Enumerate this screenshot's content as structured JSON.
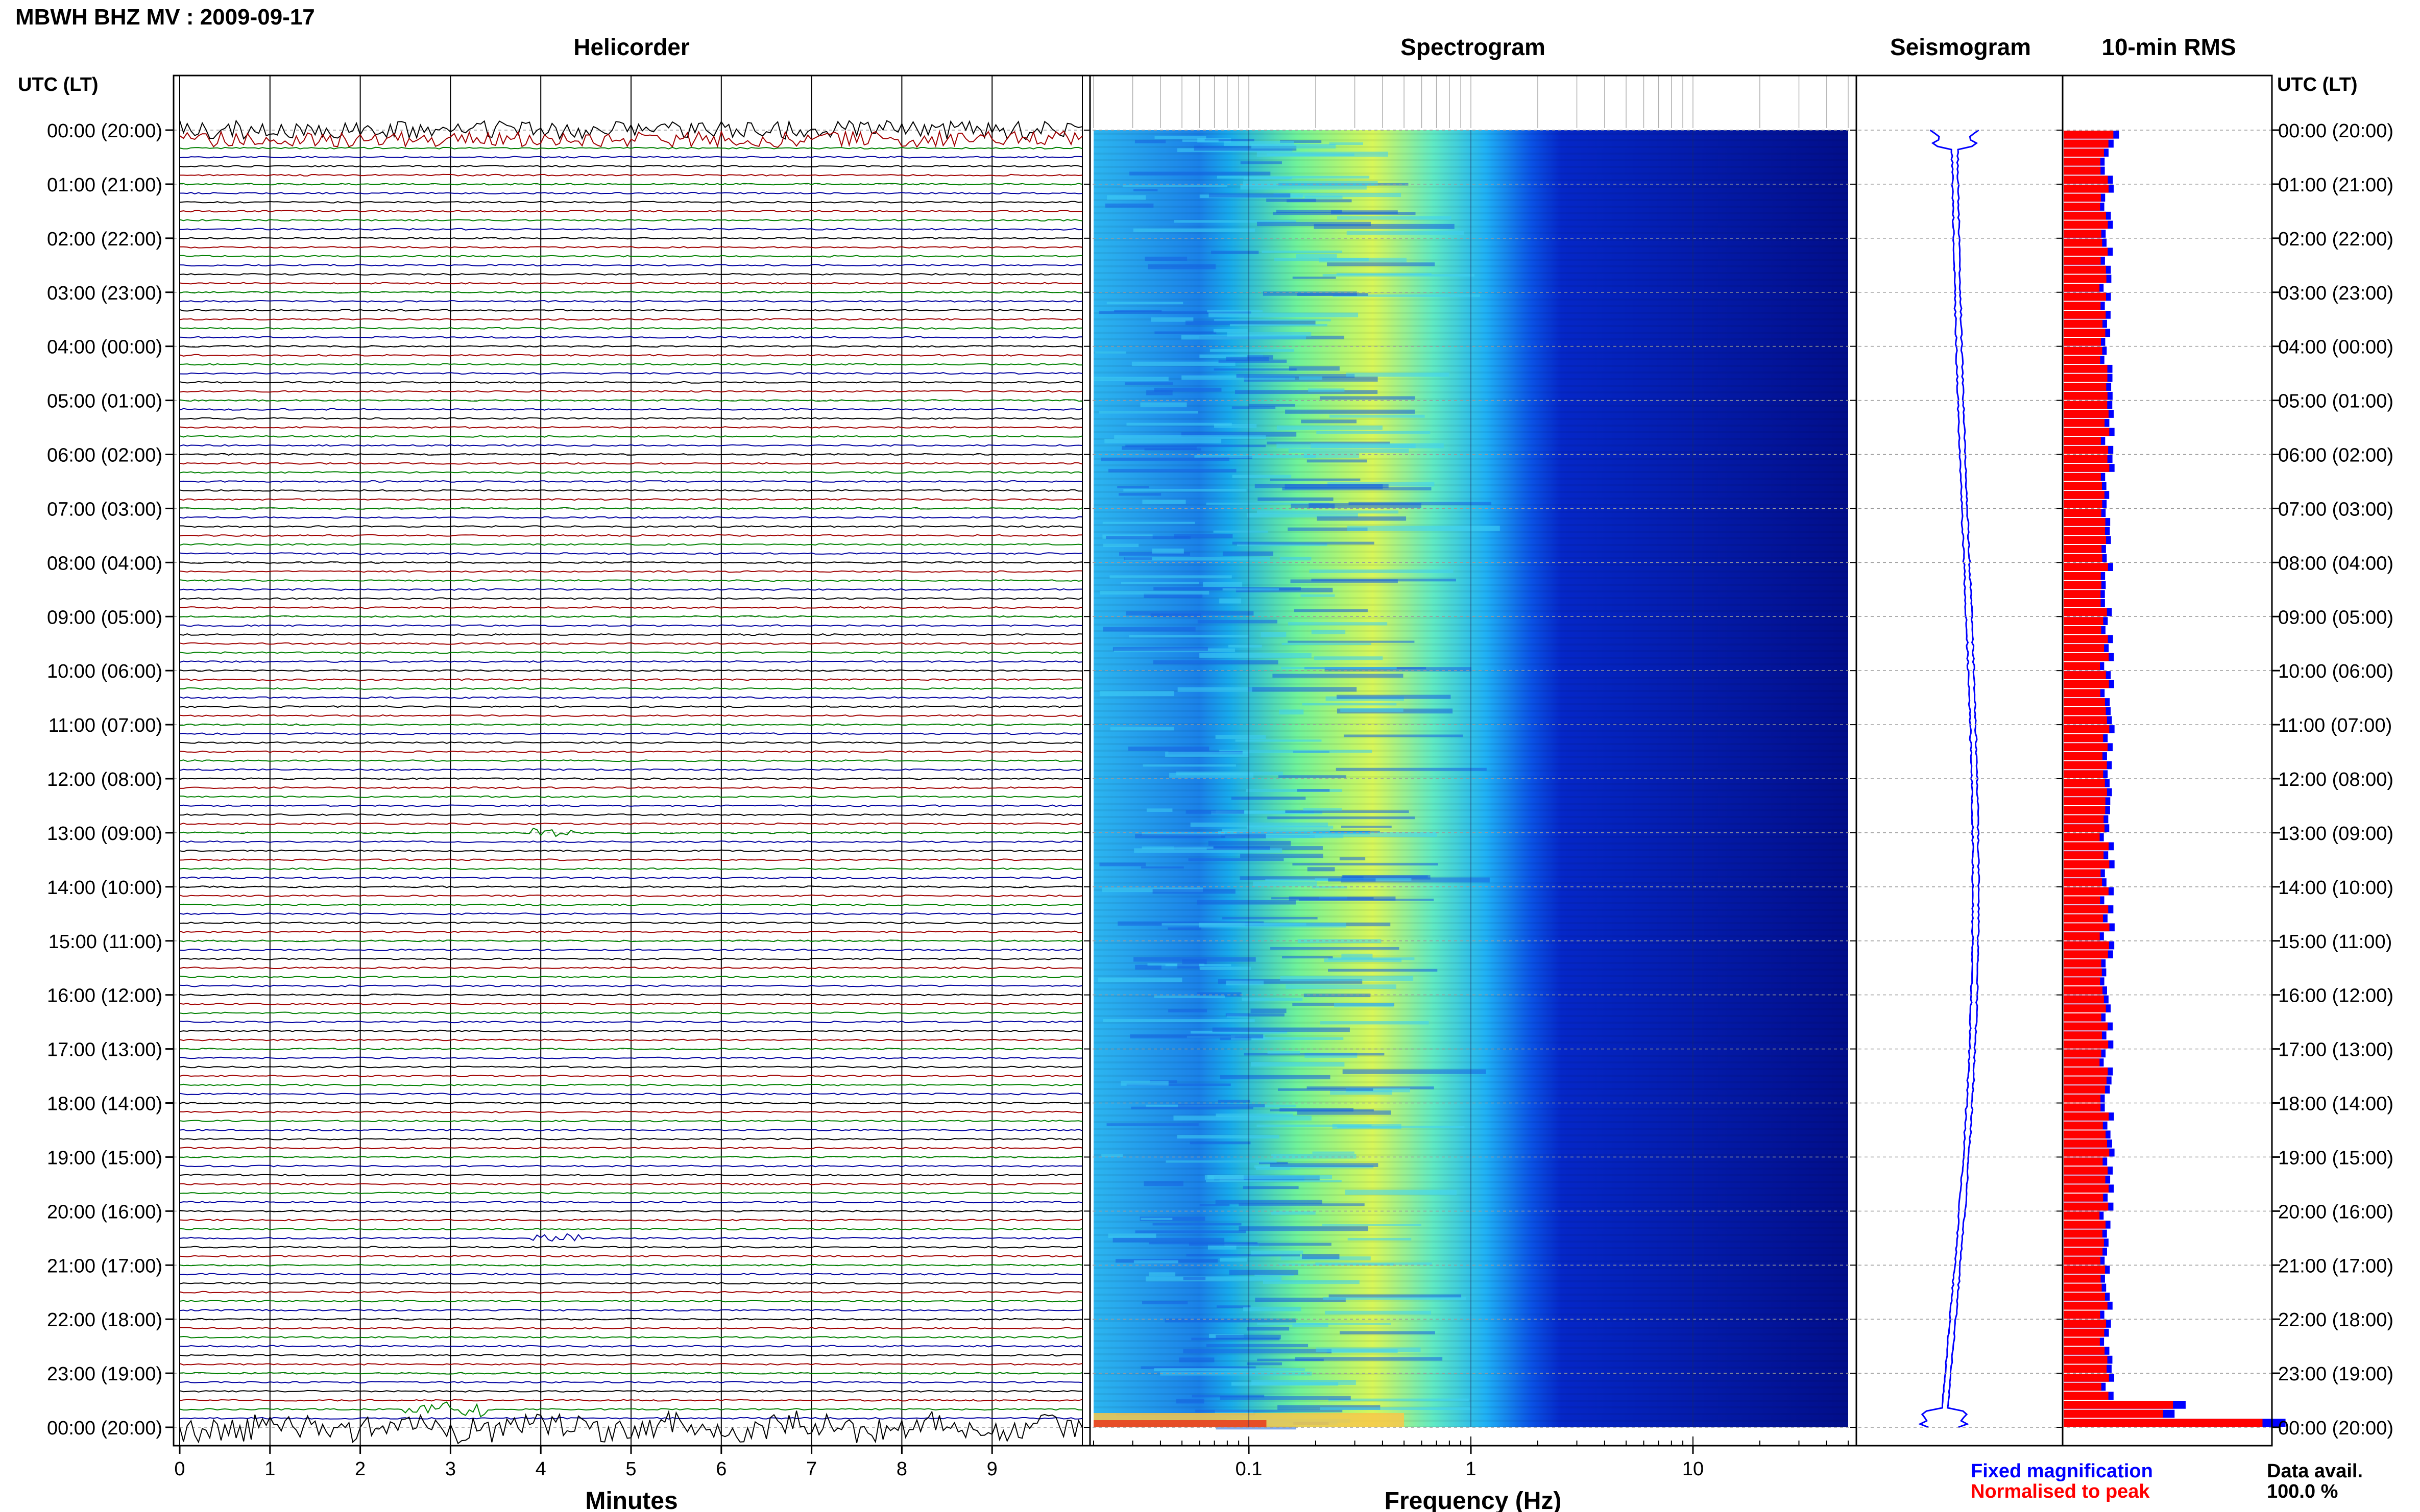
{
  "figure_title": "MBWH BHZ MV : 2009-09-17",
  "panel_titles": {
    "helicorder": "Helicorder",
    "spectrogram": "Spectrogram",
    "seismogram": "Seismogram",
    "rms": "10-min RMS"
  },
  "time_axis": {
    "label_left": "UTC (LT)",
    "label_right": "UTC (LT)",
    "ticks": [
      "00:00 (20:00)",
      "01:00 (21:00)",
      "02:00 (22:00)",
      "03:00 (23:00)",
      "04:00 (00:00)",
      "05:00 (01:00)",
      "06:00 (02:00)",
      "07:00 (03:00)",
      "08:00 (04:00)",
      "09:00 (05:00)",
      "10:00 (06:00)",
      "11:00 (07:00)",
      "12:00 (08:00)",
      "13:00 (09:00)",
      "14:00 (10:00)",
      "15:00 (11:00)",
      "16:00 (12:00)",
      "17:00 (13:00)",
      "18:00 (14:00)",
      "19:00 (15:00)",
      "20:00 (16:00)",
      "21:00 (17:00)",
      "22:00 (18:00)",
      "23:00 (19:00)",
      "00:00 (20:00)"
    ]
  },
  "legend": {
    "fixed": "Fixed magnification",
    "normalised": "Normalised to peak",
    "fixed_color": "#0000ff",
    "normalised_color": "#ff0000"
  },
  "data_avail": {
    "label": "Data avail.",
    "value": "100.0 %"
  },
  "colors": {
    "trace_cycle": [
      "#000000",
      "#a00000",
      "#008000",
      "#0000a0"
    ],
    "seismogram": "#0000ff",
    "rms_fixed": "#0000ff",
    "rms_normalised": "#ff0000",
    "spectrogram_low": "#00007f",
    "spectrogram_mid": "#00ffff",
    "spectrogram_high": "#ffff00"
  },
  "chart_data": [
    {
      "type": "line",
      "name": "helicorder",
      "xlabel": "Minutes",
      "x_ticks": [
        0,
        1,
        2,
        3,
        4,
        5,
        6,
        7,
        8,
        9
      ],
      "xlim": [
        0,
        10
      ],
      "rows": 145,
      "row_minutes": 10,
      "events": [
        {
          "row": 0,
          "minute_start": 0,
          "minute_end": 10,
          "amp": 1.2
        },
        {
          "row": 1,
          "minute_start": 0,
          "minute_end": 10,
          "amp": 1.0
        },
        {
          "row": 78,
          "minute_start": 3.9,
          "minute_end": 4.4,
          "amp": 0.7
        },
        {
          "row": 123,
          "minute_start": 3.9,
          "minute_end": 4.5,
          "amp": 0.6
        },
        {
          "row": 142,
          "minute_start": 2.5,
          "minute_end": 3.4,
          "amp": 1.2
        },
        {
          "row": 144,
          "minute_start": 0,
          "minute_end": 10,
          "amp": 1.6
        }
      ]
    },
    {
      "type": "heatmap",
      "name": "spectrogram",
      "xlabel": "Frequency (Hz)",
      "x_scale": "log",
      "xlim": [
        0.02,
        50
      ],
      "x_ticks": [
        0.1,
        1,
        10
      ],
      "x_tick_labels": [
        "0.1",
        "1",
        "10"
      ]
    },
    {
      "type": "line",
      "name": "seismogram",
      "description": "24-hour compressed trace, slow drift with bursts at start and end"
    },
    {
      "type": "bar",
      "name": "10-min RMS",
      "orientation": "horizontal",
      "series": [
        {
          "name": "Fixed magnification",
          "note": "blue"
        },
        {
          "name": "Normalised to peak",
          "note": "red"
        }
      ],
      "rms_peaks": [
        {
          "row": 0,
          "value": 0.25
        },
        {
          "row": 141,
          "value": 0.55
        },
        {
          "row": 143,
          "value": 1.0
        }
      ]
    }
  ]
}
